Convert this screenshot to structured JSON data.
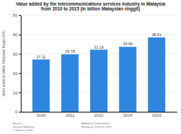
{
  "chart_data": {
    "type": "bar",
    "title": "Value added by the telecommunications services industry in Malaysia\nfrom 2010 to 2015 (in billion Malaysian ringgit)",
    "categories": [
      "2010",
      "2011",
      "2012",
      "2014",
      "2015"
    ],
    "values": [
      27.11,
      29.78,
      32.19,
      33.66,
      38.51
    ],
    "color": "#2e86de",
    "ylabel": "Value added in billion Malaysian ringgit (RM)",
    "ylim": [
      0,
      50
    ],
    "yticks": [
      0,
      10,
      20,
      30,
      40,
      50
    ],
    "grid": true,
    "data_labels": true,
    "annotations": [
      "Source:\nStatista Malaysia\n© Statista 2018",
      "Additional Information:\nMalaysia, 2010 to 2015"
    ]
  }
}
